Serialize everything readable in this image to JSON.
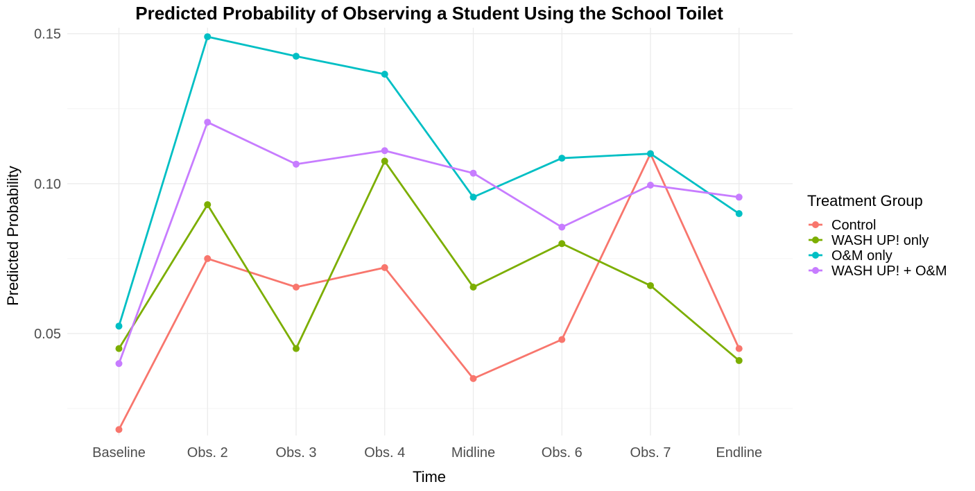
{
  "chart_data": {
    "type": "line",
    "title": "Predicted Probability of Observing a Student Using the School Toilet",
    "xlabel": "Time",
    "ylabel": "Predicted Probability",
    "categories": [
      "Baseline",
      "Obs. 2",
      "Obs. 3",
      "Obs. 4",
      "Midline",
      "Obs. 6",
      "Obs. 7",
      "Endline"
    ],
    "ylim": [
      0.016,
      0.152
    ],
    "yticks": [
      0.05,
      0.1,
      0.15
    ],
    "ytick_labels": [
      "0.05",
      "0.10",
      "0.15"
    ],
    "grid": true,
    "legend": {
      "title": "Treatment Group",
      "position": "right"
    },
    "series": [
      {
        "name": "Control",
        "color": "#f8766d",
        "values": [
          0.018,
          0.075,
          0.0655,
          0.072,
          0.035,
          0.048,
          0.11,
          0.045
        ]
      },
      {
        "name": "WASH UP! only",
        "color": "#7cae00",
        "values": [
          0.045,
          0.093,
          0.045,
          0.1075,
          0.0655,
          0.08,
          0.066,
          0.041
        ]
      },
      {
        "name": "O&M only",
        "color": "#00bfc4",
        "values": [
          0.0525,
          0.149,
          0.1425,
          0.1365,
          0.0955,
          0.1085,
          0.11,
          0.09
        ]
      },
      {
        "name": "WASH UP! + O&M",
        "color": "#c77cff",
        "values": [
          0.04,
          0.1205,
          0.1065,
          0.111,
          0.1035,
          0.0855,
          0.0995,
          0.0955
        ]
      }
    ]
  }
}
